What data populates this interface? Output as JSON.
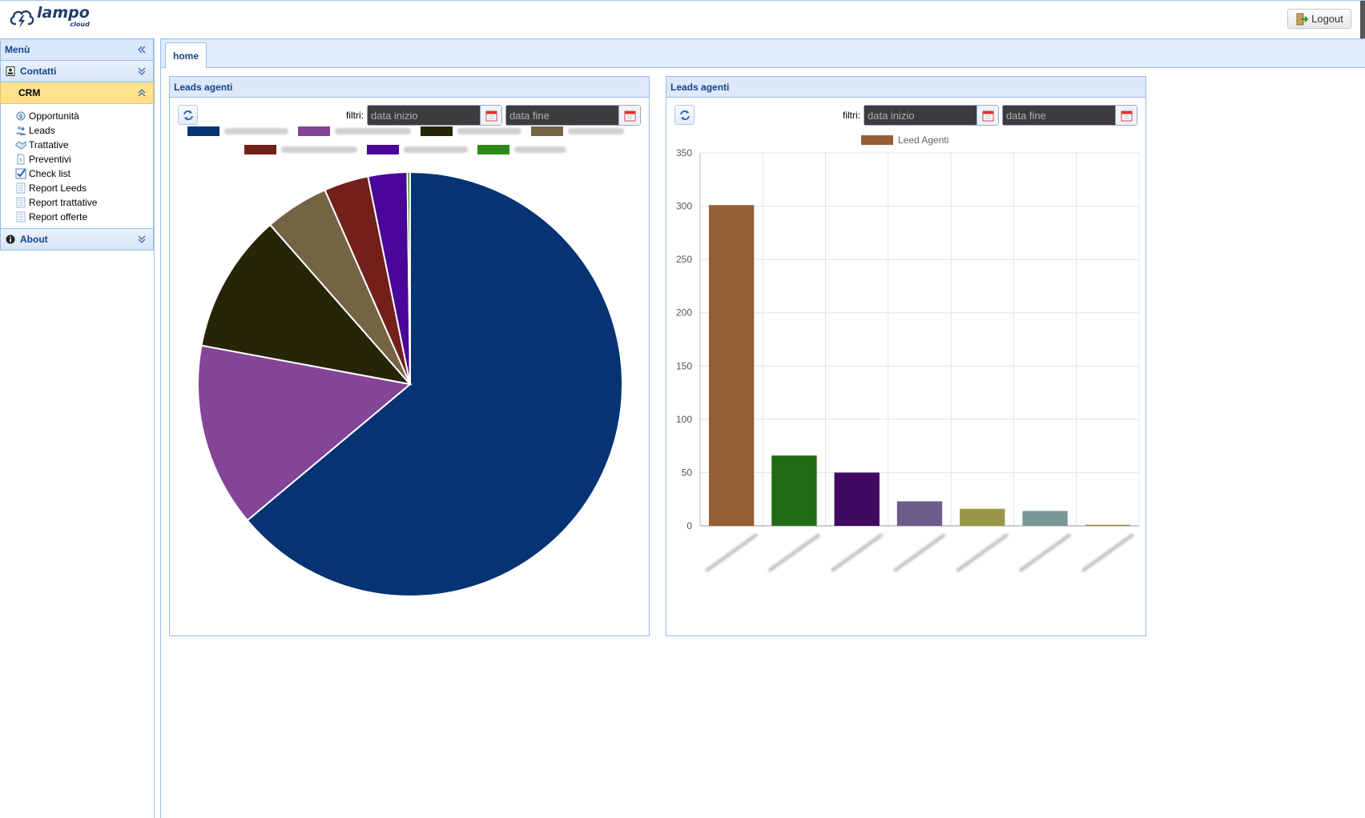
{
  "header": {
    "logo_main": "lampo",
    "logo_sub": "cloud",
    "logout_label": "Logout"
  },
  "sidebar": {
    "title": "Menù",
    "sections": [
      {
        "label": "Contatti",
        "icon": "contact-card-icon",
        "expanded": false
      },
      {
        "label": "CRM",
        "icon": "",
        "expanded": true,
        "items": [
          {
            "label": "Opportunità",
            "icon": "opportunity-icon"
          },
          {
            "label": "Leads",
            "icon": "users-icon"
          },
          {
            "label": "Trattative",
            "icon": "handshake-icon"
          },
          {
            "label": "Preventivi",
            "icon": "document-icon"
          },
          {
            "label": "Check list",
            "icon": "checkbox-checked-icon"
          },
          {
            "label": "Report Leeds",
            "icon": "report-icon"
          },
          {
            "label": "Report trattative",
            "icon": "report-icon"
          },
          {
            "label": "Report offerte",
            "icon": "report-icon"
          }
        ]
      },
      {
        "label": "About",
        "icon": "info-icon",
        "expanded": false
      }
    ]
  },
  "tabs": [
    {
      "label": "home",
      "active": true
    }
  ],
  "panels": [
    {
      "title": "Leads agenti",
      "filter_label": "filtri:",
      "start_placeholder": "data inizio",
      "end_placeholder": "data fine"
    },
    {
      "title": "Leads agenti",
      "filter_label": "filtri:",
      "start_placeholder": "data inizio",
      "end_placeholder": "data fine"
    }
  ],
  "chart_data": [
    {
      "type": "pie",
      "legend_labels_obscured": true,
      "values": [
        301,
        66,
        50,
        23,
        16,
        14,
        1
      ],
      "colors": [
        "#063373",
        "#844497",
        "#262607",
        "#746444",
        "#73201a",
        "#4a0599",
        "#2e8a16"
      ]
    },
    {
      "type": "bar",
      "series": [
        {
          "name": "Leed Agenti",
          "values": [
            301,
            66,
            50,
            23,
            16,
            14,
            1
          ]
        }
      ],
      "category_labels_obscured": true,
      "colors": [
        "#955f33",
        "#226b14",
        "#410a61",
        "#6a5d8c",
        "#989847",
        "#7c9797",
        "#99884b"
      ],
      "ylim": [
        0,
        350
      ],
      "yticks": [
        0,
        50,
        100,
        150,
        200,
        250,
        300,
        350
      ],
      "grid": true,
      "legend_position": "top"
    }
  ]
}
